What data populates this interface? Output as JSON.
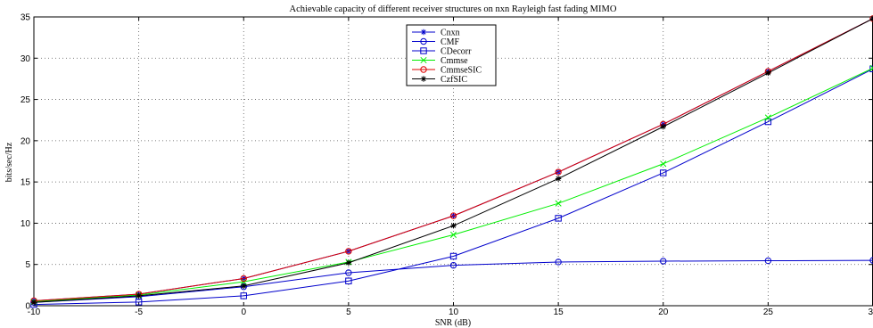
{
  "chart_data": {
    "type": "line",
    "title": "Achievable capacity of different receiver structures on nxn Rayleigh fast fading MIMO",
    "xlabel": "SNR (dB)",
    "ylabel": "bits/sec/Hz",
    "x": [
      -10,
      -5,
      0,
      5,
      10,
      15,
      20,
      25,
      30
    ],
    "xlim": [
      -10,
      30
    ],
    "ylim": [
      0,
      35
    ],
    "xticks": [
      -10,
      -5,
      0,
      5,
      10,
      15,
      20,
      25,
      30
    ],
    "yticks": [
      0,
      5,
      10,
      15,
      20,
      25,
      30,
      35
    ],
    "grid": true,
    "legend_position": "top-center",
    "series": [
      {
        "name": "Cnxn",
        "color": "#0000cc",
        "marker": "asterisk",
        "values": [
          0.6,
          1.4,
          3.3,
          6.6,
          10.9,
          16.2,
          22.0,
          28.4,
          34.8
        ]
      },
      {
        "name": "CMF",
        "color": "#0000cc",
        "marker": "circle",
        "values": [
          0.4,
          1.1,
          2.3,
          4.0,
          4.9,
          5.3,
          5.4,
          5.45,
          5.5
        ]
      },
      {
        "name": "CDecorr",
        "color": "#0000cc",
        "marker": "square",
        "values": [
          0.15,
          0.45,
          1.2,
          3.0,
          6.0,
          10.6,
          16.1,
          22.3,
          28.7
        ]
      },
      {
        "name": "Cmmse",
        "color": "#00ee00",
        "marker": "x",
        "values": [
          0.5,
          1.3,
          2.9,
          5.3,
          8.6,
          12.4,
          17.2,
          22.8,
          28.8
        ]
      },
      {
        "name": "CmmseSIC",
        "color": "#dd0000",
        "marker": "circle",
        "values": [
          0.6,
          1.4,
          3.3,
          6.6,
          10.9,
          16.2,
          22.0,
          28.4,
          34.8
        ]
      },
      {
        "name": "CzfSIC",
        "color": "#000000",
        "marker": "asterisk",
        "values": [
          0.4,
          1.2,
          2.4,
          5.2,
          9.7,
          15.4,
          21.7,
          28.2,
          34.8
        ]
      }
    ]
  }
}
